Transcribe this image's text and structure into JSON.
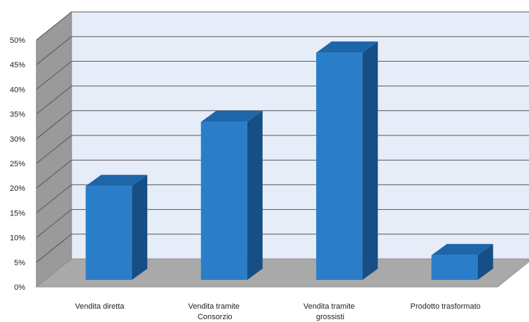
{
  "chart_data": {
    "type": "bar",
    "title": "",
    "xlabel": "",
    "ylabel": "",
    "categories": [
      [
        "Vendita diretta"
      ],
      [
        "Vendita tramite",
        "Consorzio"
      ],
      [
        "Vendita tramite",
        "grossisti"
      ],
      [
        "Prodotto trasformato"
      ]
    ],
    "values": [
      19,
      32,
      46,
      5
    ],
    "ylim": [
      0,
      50
    ],
    "y_ticks": [
      "0%",
      "5%",
      "10%",
      "15%",
      "20%",
      "25%",
      "30%",
      "35%",
      "40%",
      "45%",
      "50%"
    ],
    "grid": true,
    "legend": "none",
    "style": "3d-column"
  },
  "colors": {
    "bar_front": "#2a7ec9",
    "bar_side": "#154f85",
    "bar_top": "#1d66aa",
    "back_wall": "#e7edf8",
    "side_wall": "#9a9a9a",
    "floor": "#a9a9a9",
    "gridline": "#555555"
  }
}
